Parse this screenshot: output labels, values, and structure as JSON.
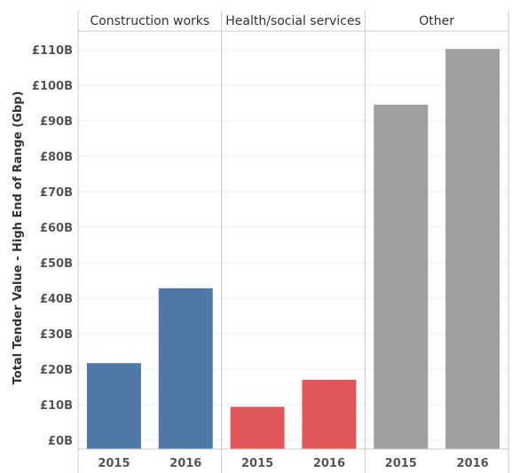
{
  "chart_data": {
    "type": "bar",
    "ylabel": "Total Tender Value - High End of Range (Gbp)",
    "ylim": [
      0,
      113
    ],
    "yticks": [
      0,
      10,
      20,
      30,
      40,
      50,
      60,
      70,
      80,
      90,
      100,
      110
    ],
    "ytick_labels": [
      "£0B",
      "£10B",
      "£20B",
      "£30B",
      "£40B",
      "£50B",
      "£60B",
      "£70B",
      "£80B",
      "£90B",
      "£100B",
      "£110B"
    ],
    "grid": true,
    "panels": [
      {
        "name": "Construction works",
        "color": "#4e79a7",
        "categories": [
          "2015",
          "2016"
        ],
        "values": [
          21.7,
          42.8
        ]
      },
      {
        "name": "Health/social services",
        "color": "#e15759",
        "categories": [
          "2015",
          "2016"
        ],
        "values": [
          9.4,
          17.0
        ]
      },
      {
        "name": "Other",
        "color": "#a0a0a0",
        "categories": [
          "2015",
          "2016"
        ],
        "values": [
          94.5,
          110.2
        ]
      }
    ]
  }
}
